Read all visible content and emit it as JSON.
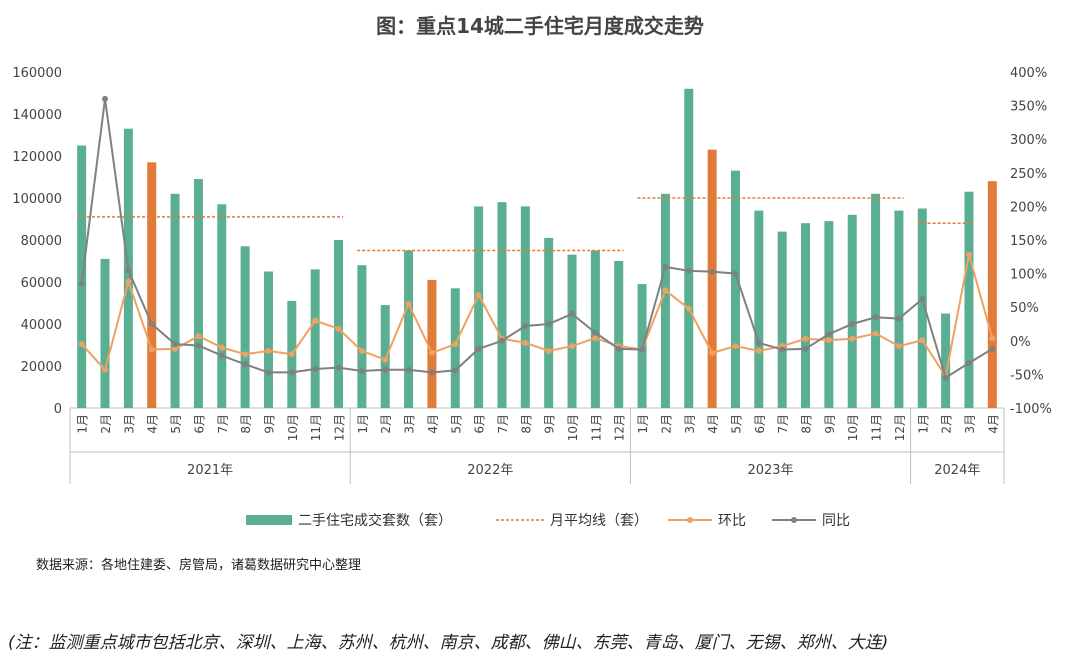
{
  "title": "图：重点14城二手住宅月度成交走势",
  "source": "数据来源：各地住建委、房管局，诸葛数据研究中心整理",
  "footnote": "(注：监测重点城市包括北京、深圳、上海、苏州、杭州、南京、成都、佛山、东莞、青岛、厦门、无锡、郑州、大连)",
  "colors": {
    "bar": "#5aaf93",
    "highlight": "#e07b39",
    "avg": "#e07b39",
    "mom": "#f0a060",
    "yoy": "#808080"
  },
  "chart_data": {
    "type": "bar",
    "categories": [
      "1月",
      "2月",
      "3月",
      "4月",
      "5月",
      "6月",
      "7月",
      "8月",
      "9月",
      "10月",
      "11月",
      "12月",
      "1月",
      "2月",
      "3月",
      "4月",
      "5月",
      "6月",
      "7月",
      "8月",
      "9月",
      "10月",
      "11月",
      "12月",
      "1月",
      "2月",
      "3月",
      "4月",
      "5月",
      "6月",
      "7月",
      "8月",
      "9月",
      "10月",
      "11月",
      "12月",
      "1月",
      "2月",
      "3月",
      "4月"
    ],
    "years": [
      {
        "label": "2021年",
        "start": 0,
        "end": 11
      },
      {
        "label": "2022年",
        "start": 12,
        "end": 23
      },
      {
        "label": "2023年",
        "start": 24,
        "end": 35
      },
      {
        "label": "2024年",
        "start": 36,
        "end": 39
      }
    ],
    "highlight_indices": [
      3,
      15,
      27,
      39
    ],
    "series": [
      {
        "name": "二手住宅成交套数（套）",
        "kind": "bar",
        "axis": "left",
        "values": [
          125000,
          71000,
          133000,
          117000,
          102000,
          109000,
          97000,
          77000,
          65000,
          51000,
          66000,
          80000,
          68000,
          49000,
          75000,
          61000,
          57000,
          96000,
          98000,
          96000,
          81000,
          73000,
          75000,
          70000,
          59000,
          102000,
          152000,
          123000,
          113000,
          94000,
          84000,
          88000,
          89000,
          92000,
          102000,
          94000,
          95000,
          45000,
          103000,
          108000
        ]
      },
      {
        "name": "月平均线（套）",
        "kind": "avg",
        "axis": "left",
        "segments": [
          {
            "start": 0,
            "end": 11,
            "value": 91000
          },
          {
            "start": 12,
            "end": 23,
            "value": 75000
          },
          {
            "start": 24,
            "end": 35,
            "value": 100000
          },
          {
            "start": 36,
            "end": 38,
            "value": 88000
          }
        ]
      },
      {
        "name": "环比",
        "kind": "line",
        "axis": "right",
        "values": [
          -5,
          -43,
          88,
          -13,
          -12,
          7,
          -10,
          -20,
          -15,
          -20,
          30,
          18,
          -15,
          -28,
          55,
          -18,
          -5,
          68,
          3,
          -3,
          -15,
          -8,
          4,
          -8,
          -13,
          75,
          48,
          -18,
          -8,
          -15,
          -8,
          3,
          1,
          3,
          11,
          -8,
          1,
          -53,
          128,
          4
        ]
      },
      {
        "name": "同比",
        "kind": "line",
        "axis": "right",
        "values": [
          85,
          360,
          105,
          25,
          -5,
          -7,
          -22,
          -35,
          -47,
          -47,
          -42,
          -40,
          -45,
          -43,
          -43,
          -47,
          -44,
          -12,
          0,
          22,
          25,
          40,
          12,
          -12,
          -13,
          110,
          104,
          103,
          100,
          -3,
          -13,
          -12,
          10,
          25,
          35,
          33,
          62,
          -55,
          -33,
          -12
        ]
      }
    ],
    "ylim": [
      0,
      160000
    ],
    "yticks": [
      "0",
      "20000",
      "40000",
      "60000",
      "80000",
      "100000",
      "120000",
      "140000",
      "160000"
    ],
    "y2lim": [
      -100,
      400
    ],
    "y2ticks": [
      "-100%",
      "-50%",
      "0%",
      "50%",
      "100%",
      "150%",
      "200%",
      "250%",
      "300%",
      "350%",
      "400%"
    ],
    "legend_position": "bottom",
    "legend": [
      "二手住宅成交套数（套）",
      "月平均线（套）",
      "环比",
      "同比"
    ]
  }
}
